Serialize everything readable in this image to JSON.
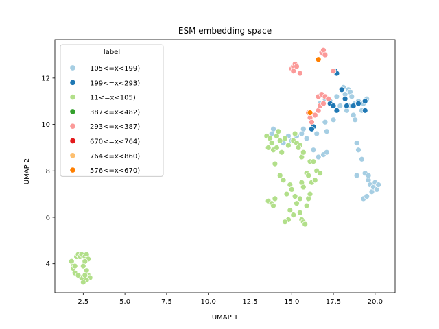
{
  "chart_data": {
    "type": "scatter",
    "title": "ESM embedding space",
    "xlabel": "UMAP 1",
    "ylabel": "UMAP 2",
    "xlim": [
      0.8,
      21.2
    ],
    "ylim": [
      2.75,
      13.65
    ],
    "xticks": [
      2.5,
      5.0,
      7.5,
      10.0,
      12.5,
      15.0,
      17.5,
      20.0
    ],
    "xtick_labels": [
      "2.5",
      "5.0",
      "7.5",
      "10.0",
      "12.5",
      "15.0",
      "17.5",
      "20.0"
    ],
    "yticks": [
      4,
      6,
      8,
      10,
      12
    ],
    "ytick_labels": [
      "4",
      "6",
      "8",
      "10",
      "12"
    ],
    "grid": false,
    "legend": {
      "title": "label",
      "placement": "upper-left"
    },
    "series": [
      {
        "name": "105<=x<199)",
        "color": "#a6cee3",
        "points": [
          [
            13.8,
            9.6
          ],
          [
            13.9,
            9.8
          ],
          [
            14.5,
            9.2
          ],
          [
            14.8,
            9.5
          ],
          [
            15.0,
            9.3
          ],
          [
            15.3,
            9.5
          ],
          [
            15.6,
            9.6
          ],
          [
            15.7,
            9.8
          ],
          [
            15.9,
            9.4
          ],
          [
            16.3,
            8.9
          ],
          [
            16.5,
            9.6
          ],
          [
            16.6,
            8.6
          ],
          [
            16.9,
            8.7
          ],
          [
            17.1,
            8.8
          ],
          [
            17.1,
            9.7
          ],
          [
            16.7,
            10.9
          ],
          [
            17.0,
            10.1
          ],
          [
            17.0,
            11.1
          ],
          [
            17.3,
            11.0
          ],
          [
            17.7,
            11.2
          ],
          [
            17.9,
            10.8
          ],
          [
            18.0,
            11.5
          ],
          [
            18.1,
            11.6
          ],
          [
            18.2,
            11.3
          ],
          [
            18.4,
            11.5
          ],
          [
            18.5,
            11.4
          ],
          [
            18.6,
            11.2
          ],
          [
            18.4,
            10.8
          ],
          [
            18.7,
            10.4
          ],
          [
            18.8,
            10.2
          ],
          [
            18.8,
            10.9
          ],
          [
            19.0,
            11.0
          ],
          [
            19.3,
            10.9
          ],
          [
            19.5,
            11.1
          ],
          [
            19.2,
            10.6
          ],
          [
            18.9,
            9.2
          ],
          [
            19.0,
            8.9
          ],
          [
            19.2,
            8.5
          ],
          [
            18.9,
            7.8
          ],
          [
            19.3,
            6.8
          ],
          [
            19.5,
            6.9
          ],
          [
            19.4,
            7.9
          ],
          [
            19.6,
            7.6
          ],
          [
            19.7,
            7.4
          ],
          [
            19.8,
            7.1
          ],
          [
            19.9,
            7.3
          ],
          [
            20.0,
            7.5
          ],
          [
            20.1,
            7.2
          ],
          [
            20.2,
            7.4
          ],
          [
            19.6,
            7.8
          ],
          [
            17.5,
            10.2
          ],
          [
            18.3,
            10.6
          ]
        ]
      },
      {
        "name": "199<=x<293)",
        "color": "#1f78b4",
        "points": [
          [
            16.2,
            10.1
          ],
          [
            16.3,
            9.9
          ],
          [
            16.2,
            9.8
          ],
          [
            17.3,
            10.9
          ],
          [
            17.5,
            10.8
          ],
          [
            17.7,
            10.6
          ],
          [
            17.6,
            12.3
          ],
          [
            17.7,
            12.2
          ],
          [
            18.0,
            11.5
          ],
          [
            18.2,
            11.1
          ],
          [
            18.3,
            10.8
          ],
          [
            18.7,
            10.8
          ],
          [
            19.0,
            10.9
          ],
          [
            19.4,
            11.0
          ],
          [
            19.4,
            10.6
          ]
        ]
      },
      {
        "name": "11<=x<105)",
        "color": "#b2df8a",
        "points": [
          [
            1.8,
            4.1
          ],
          [
            1.9,
            3.9
          ],
          [
            2.0,
            3.6
          ],
          [
            1.9,
            3.8
          ],
          [
            2.1,
            4.3
          ],
          [
            2.2,
            4.4
          ],
          [
            2.3,
            4.3
          ],
          [
            2.4,
            4.4
          ],
          [
            2.6,
            4.3
          ],
          [
            2.7,
            4.4
          ],
          [
            2.8,
            4.2
          ],
          [
            2.6,
            4.1
          ],
          [
            2.5,
            3.9
          ],
          [
            2.7,
            3.7
          ],
          [
            2.8,
            3.5
          ],
          [
            2.9,
            3.4
          ],
          [
            2.7,
            3.3
          ],
          [
            2.5,
            3.2
          ],
          [
            2.4,
            3.4
          ],
          [
            2.6,
            3.5
          ],
          [
            2.2,
            3.5
          ],
          [
            2.0,
            3.9
          ],
          [
            13.5,
            9.5
          ],
          [
            13.7,
            9.4
          ],
          [
            13.8,
            9.2
          ],
          [
            13.6,
            9.0
          ],
          [
            13.9,
            8.9
          ],
          [
            14.1,
            9.0
          ],
          [
            14.3,
            9.3
          ],
          [
            14.1,
            9.5
          ],
          [
            14.6,
            9.4
          ],
          [
            14.8,
            9.1
          ],
          [
            15.1,
            9.3
          ],
          [
            15.3,
            9.2
          ],
          [
            15.5,
            9.1
          ],
          [
            15.2,
            9.6
          ],
          [
            14.4,
            8.8
          ],
          [
            14.0,
            8.3
          ],
          [
            14.3,
            7.8
          ],
          [
            14.5,
            7.6
          ],
          [
            13.6,
            6.7
          ],
          [
            13.8,
            6.6
          ],
          [
            14.0,
            6.8
          ],
          [
            13.9,
            6.5
          ],
          [
            14.7,
            7.0
          ],
          [
            14.9,
            7.4
          ],
          [
            15.0,
            7.2
          ],
          [
            15.2,
            6.9
          ],
          [
            15.3,
            6.6
          ],
          [
            15.5,
            6.8
          ],
          [
            15.6,
            7.5
          ],
          [
            15.7,
            7.3
          ],
          [
            14.9,
            6.3
          ],
          [
            15.1,
            6.1
          ],
          [
            14.8,
            5.9
          ],
          [
            14.6,
            5.8
          ],
          [
            15.5,
            6.2
          ],
          [
            15.6,
            5.9
          ],
          [
            15.7,
            5.8
          ],
          [
            15.8,
            5.7
          ],
          [
            15.9,
            6.5
          ],
          [
            16.0,
            6.8
          ],
          [
            16.1,
            7.0
          ],
          [
            15.9,
            7.9
          ],
          [
            16.0,
            7.8
          ],
          [
            16.2,
            7.5
          ],
          [
            16.4,
            7.6
          ],
          [
            16.5,
            8.0
          ],
          [
            16.1,
            8.4
          ],
          [
            16.3,
            8.4
          ],
          [
            15.6,
            8.6
          ],
          [
            15.7,
            8.8
          ],
          [
            15.4,
            9.0
          ],
          [
            16.7,
            7.9
          ],
          [
            14.2,
            9.7
          ]
        ]
      },
      {
        "name": "387<=x<482)",
        "color": "#33a02c",
        "points": []
      },
      {
        "name": "293<=x<387)",
        "color": "#fb9a99",
        "points": [
          [
            15.0,
            12.4
          ],
          [
            15.1,
            12.5
          ],
          [
            15.2,
            12.6
          ],
          [
            15.3,
            12.5
          ],
          [
            15.1,
            12.3
          ],
          [
            15.5,
            12.2
          ],
          [
            16.0,
            10.5
          ],
          [
            16.1,
            10.3
          ],
          [
            16.2,
            10.1
          ],
          [
            16.4,
            10.4
          ],
          [
            16.6,
            10.6
          ],
          [
            16.7,
            10.8
          ],
          [
            16.9,
            10.9
          ],
          [
            16.6,
            11.2
          ],
          [
            16.8,
            11.3
          ],
          [
            17.0,
            11.2
          ],
          [
            17.2,
            11.1
          ],
          [
            17.5,
            12.3
          ],
          [
            16.8,
            13.1
          ],
          [
            16.9,
            13.2
          ],
          [
            17.0,
            13.0
          ]
        ]
      },
      {
        "name": "670<=x<764)",
        "color": "#e31a1c",
        "points": []
      },
      {
        "name": "764<=x<860)",
        "color": "#fdbf6f",
        "points": []
      },
      {
        "name": "576<=x<670)",
        "color": "#ff7f00",
        "points": [
          [
            16.1,
            10.5
          ],
          [
            16.6,
            12.8
          ]
        ]
      }
    ]
  }
}
